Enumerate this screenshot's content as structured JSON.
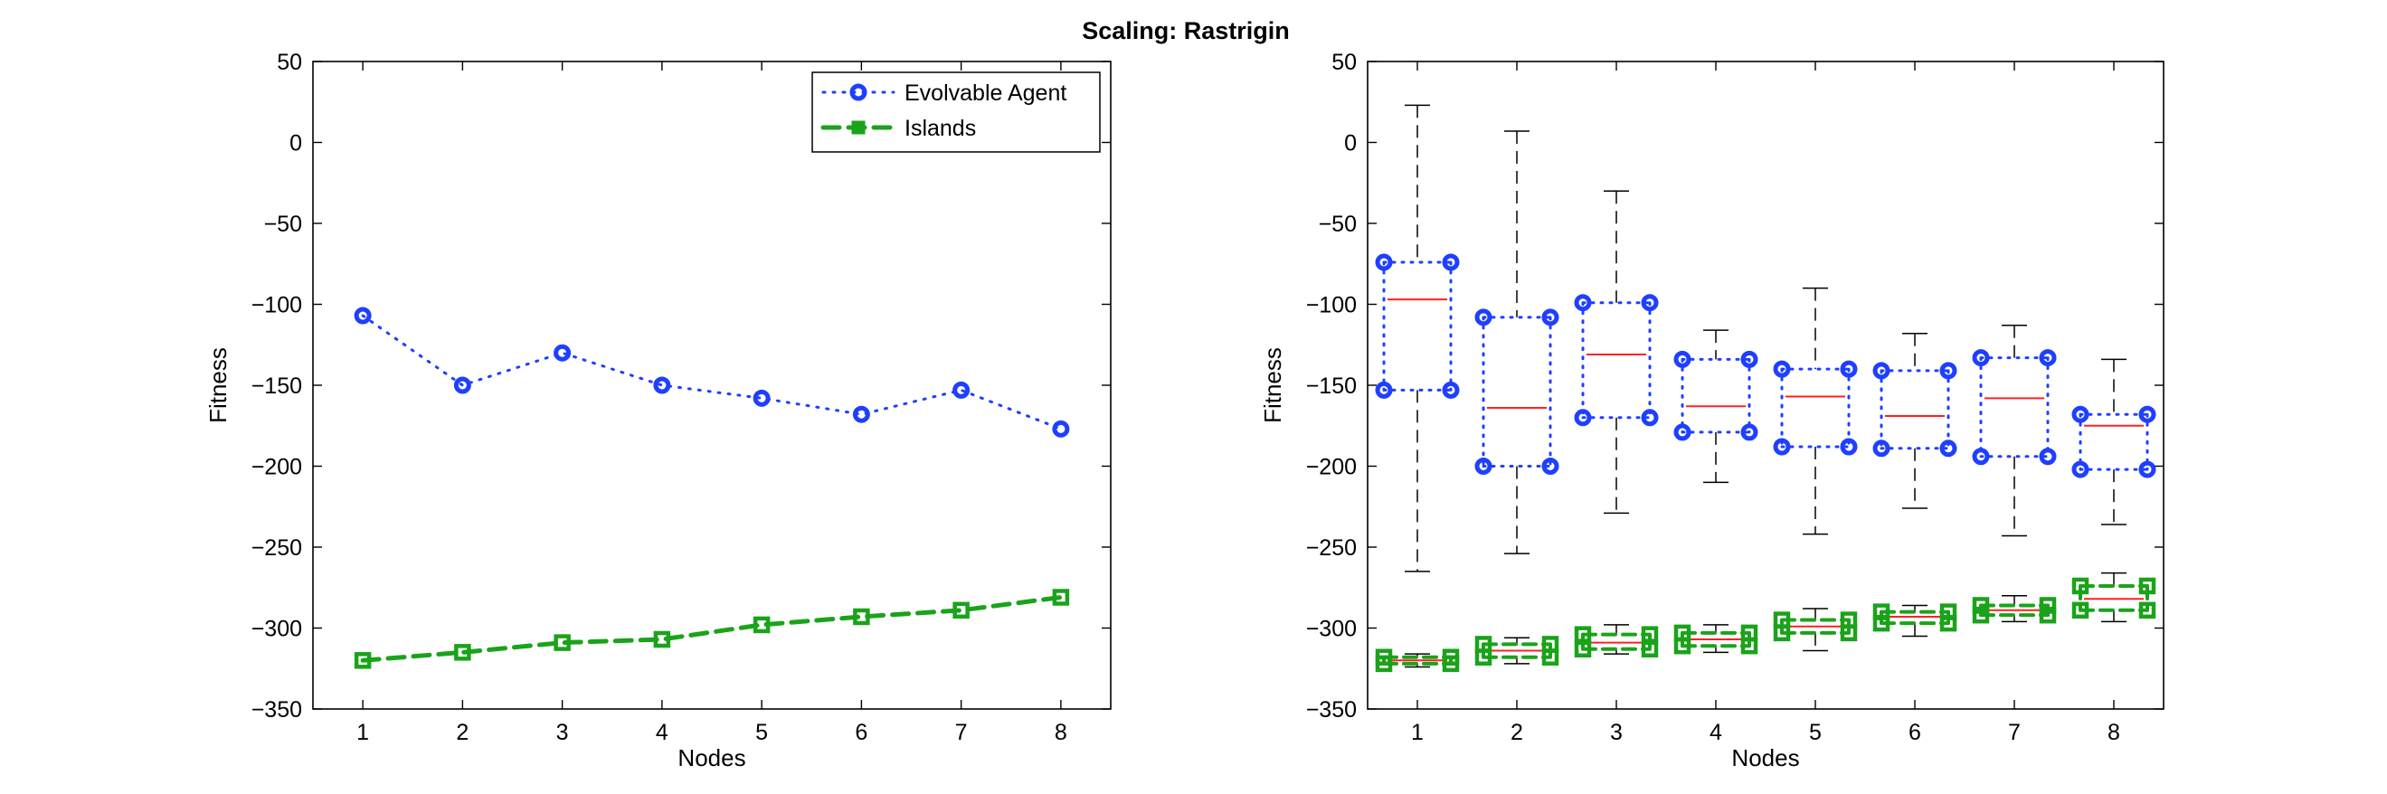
{
  "figure": {
    "title": "Scaling: Rastrigin"
  },
  "chart_data": [
    {
      "type": "line",
      "xlabel": "Nodes",
      "ylabel": "Fitness",
      "x": [
        1,
        2,
        3,
        4,
        5,
        6,
        7,
        8
      ],
      "xlim": [
        0.5,
        8.5
      ],
      "ylim": [
        -350,
        50
      ],
      "xticks": [
        "1",
        "2",
        "3",
        "4",
        "5",
        "6",
        "7",
        "8"
      ],
      "yticks": [
        "50",
        "0",
        "−50",
        "−100",
        "−150",
        "−200",
        "−250",
        "−300",
        "−350"
      ],
      "grid": false,
      "legend_placement": "top-right",
      "series": [
        {
          "name": "Evolvable Agent",
          "color": "#1f3fff",
          "line_style": "dotted",
          "marker": "circle",
          "values": [
            -107,
            -150,
            -130,
            -150,
            -158,
            -168,
            -153,
            -177
          ]
        },
        {
          "name": "Islands",
          "color": "#1aa31a",
          "line_style": "dashed",
          "marker": "square",
          "values": [
            -320,
            -315,
            -309,
            -307,
            -298,
            -293,
            -289,
            -281
          ]
        }
      ]
    },
    {
      "type": "box",
      "xlabel": "Nodes",
      "ylabel": "Fitness",
      "x": [
        1,
        2,
        3,
        4,
        5,
        6,
        7,
        8
      ],
      "xlim": [
        0.5,
        8.5
      ],
      "ylim": [
        -350,
        50
      ],
      "xticks": [
        "1",
        "2",
        "3",
        "4",
        "5",
        "6",
        "7",
        "8"
      ],
      "yticks": [
        "50",
        "0",
        "−50",
        "−100",
        "−150",
        "−200",
        "−250",
        "−300",
        "−350"
      ],
      "grid": false,
      "series": [
        {
          "name": "Evolvable Agent",
          "color": "#1f3fff",
          "median_color": "#ff2020",
          "boxes": [
            {
              "whisker_low": -265,
              "q1": -153,
              "median": -97,
              "q3": -74,
              "whisker_high": 23
            },
            {
              "whisker_low": -254,
              "q1": -200,
              "median": -164,
              "q3": -108,
              "whisker_high": 7
            },
            {
              "whisker_low": -229,
              "q1": -170,
              "median": -131,
              "q3": -99,
              "whisker_high": -30
            },
            {
              "whisker_low": -210,
              "q1": -179,
              "median": -163,
              "q3": -134,
              "whisker_high": -116
            },
            {
              "whisker_low": -242,
              "q1": -188,
              "median": -157,
              "q3": -140,
              "whisker_high": -90
            },
            {
              "whisker_low": -226,
              "q1": -189,
              "median": -169,
              "q3": -141,
              "whisker_high": -118
            },
            {
              "whisker_low": -243,
              "q1": -194,
              "median": -158,
              "q3": -133,
              "whisker_high": -113
            },
            {
              "whisker_low": -236,
              "q1": -202,
              "median": -175,
              "q3": -168,
              "whisker_high": -134
            }
          ]
        },
        {
          "name": "Islands",
          "color": "#1aa31a",
          "median_color": "#ff2020",
          "boxes": [
            {
              "whisker_low": -324,
              "q1": -322,
              "median": -320,
              "q3": -318,
              "whisker_high": -316
            },
            {
              "whisker_low": -322,
              "q1": -318,
              "median": -314,
              "q3": -310,
              "whisker_high": -306
            },
            {
              "whisker_low": -316,
              "q1": -313,
              "median": -309,
              "q3": -304,
              "whisker_high": -298
            },
            {
              "whisker_low": -315,
              "q1": -311,
              "median": -307,
              "q3": -303,
              "whisker_high": -298
            },
            {
              "whisker_low": -314,
              "q1": -303,
              "median": -299,
              "q3": -295,
              "whisker_high": -288
            },
            {
              "whisker_low": -305,
              "q1": -297,
              "median": -293,
              "q3": -290,
              "whisker_high": -286
            },
            {
              "whisker_low": -296,
              "q1": -292,
              "median": -289,
              "q3": -286,
              "whisker_high": -280
            },
            {
              "whisker_low": -296,
              "q1": -289,
              "median": -282,
              "q3": -274,
              "whisker_high": -266
            }
          ]
        }
      ]
    }
  ]
}
